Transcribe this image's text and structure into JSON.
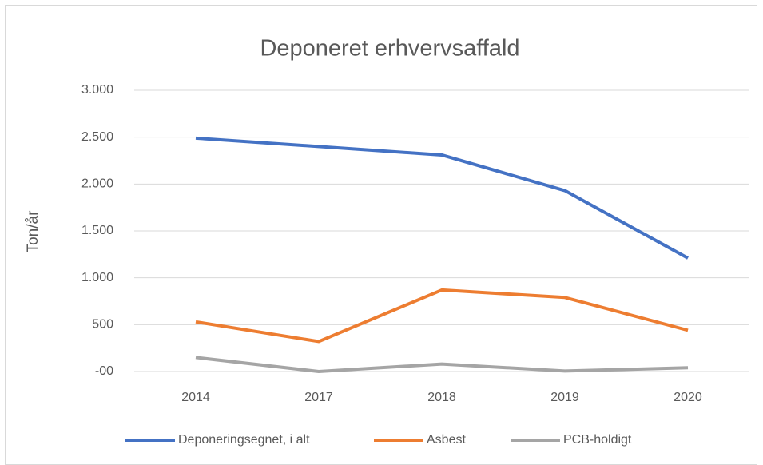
{
  "chart_data": {
    "type": "line",
    "title": "Deponeret erhvervsaffald",
    "y_label": "Ton/år",
    "categories": [
      "2014",
      "2017",
      "2018",
      "2019",
      "2020"
    ],
    "series": [
      {
        "name": "Deponeringsegnet, i alt",
        "color": "#4472c4",
        "values": [
          2490,
          2400,
          2310,
          1930,
          1210
        ]
      },
      {
        "name": "Asbest",
        "color": "#ed7d31",
        "values": [
          530,
          320,
          870,
          790,
          440
        ]
      },
      {
        "name": "PCB-holdigt",
        "color": "#a5a5a5",
        "values": [
          150,
          0,
          80,
          5,
          40
        ]
      }
    ],
    "ylim": [
      0,
      3000
    ],
    "yticks": [
      {
        "value": 0,
        "label": "-00"
      },
      500,
      {
        "value": 1000,
        "label": "1.000"
      },
      {
        "value": 1500,
        "label": "1.500"
      },
      {
        "value": 2000,
        "label": "2.000"
      },
      {
        "value": 2500,
        "label": "2.500"
      },
      {
        "value": 3000,
        "label": "3.000"
      }
    ],
    "grid": true,
    "legend": "bottom"
  }
}
